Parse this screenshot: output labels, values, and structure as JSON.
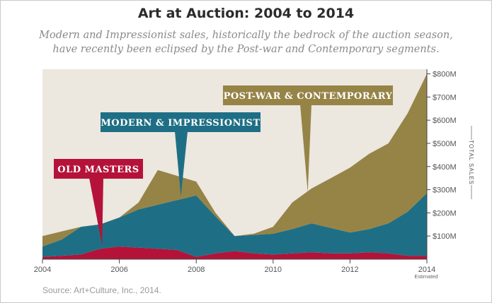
{
  "title": "Art at Auction: 2004 to 2014",
  "subtitle_line1": "Modern and Impressionist sales, historically the bedrock of the auction season,",
  "subtitle_line2": "have recently been eclipsed by the Post-war and Contemporary segments.",
  "source": "Source: Art+Culture, Inc., 2014.",
  "x_note": "Estimated",
  "y_axis_label": "TOTAL SALES",
  "colors": {
    "background": "#ece7df",
    "post_war": "#968447",
    "modern": "#1e6f85",
    "old_masters": "#b5123a"
  },
  "chart_data": {
    "type": "area",
    "stacked": true,
    "x": [
      2004,
      2004.5,
      2005,
      2005.5,
      2006,
      2006.5,
      2007,
      2007.5,
      2008,
      2008.5,
      2009,
      2009.5,
      2010,
      2010.5,
      2011,
      2011.5,
      2012,
      2012.5,
      2013,
      2013.5,
      2014
    ],
    "x_ticks": [
      2004,
      2006,
      2008,
      2010,
      2012,
      2014
    ],
    "x_tick_labels": [
      "2004",
      "2006",
      "2008",
      "2010",
      "2012",
      "2014"
    ],
    "y_ticks": [
      100,
      200,
      300,
      400,
      500,
      600,
      700,
      800
    ],
    "y_tick_labels": [
      "$100M",
      "$200M",
      "$300M",
      "$400M",
      "$500M",
      "$600M",
      "$700M",
      "$800M"
    ],
    "ylim": [
      0,
      820
    ],
    "xlim": [
      2004,
      2014
    ],
    "ylabel": "TOTAL SALES",
    "grid": false,
    "series": [
      {
        "name": "OLD MASTERS",
        "values": [
          10,
          15,
          20,
          45,
          55,
          50,
          45,
          40,
          10,
          25,
          35,
          25,
          20,
          25,
          30,
          25,
          25,
          30,
          25,
          15,
          15
        ]
      },
      {
        "name": "MODERN & IMPRESSIONIST",
        "values": [
          45,
          70,
          120,
          105,
          125,
          165,
          190,
          215,
          265,
          160,
          65,
          80,
          90,
          105,
          125,
          110,
          90,
          100,
          130,
          190,
          270
        ]
      },
      {
        "name": "POST-WAR & CONTEMPORARY",
        "values": [
          45,
          35,
          0,
          0,
          0,
          30,
          150,
          105,
          60,
          15,
          0,
          5,
          30,
          115,
          150,
          215,
          280,
          325,
          345,
          425,
          515
        ]
      }
    ],
    "callouts": [
      {
        "text": "OLD MASTERS",
        "series": "OLD MASTERS",
        "x": 2005.55,
        "y": 60
      },
      {
        "text": "MODERN & IMPRESSIONIST",
        "series": "MODERN & IMPRESSIONIST",
        "x": 2007.6,
        "y": 270
      },
      {
        "text": "POST-WAR & CONTEMPORARY",
        "series": "POST-WAR & CONTEMPORARY",
        "x": 2010.9,
        "y": 290
      }
    ]
  }
}
